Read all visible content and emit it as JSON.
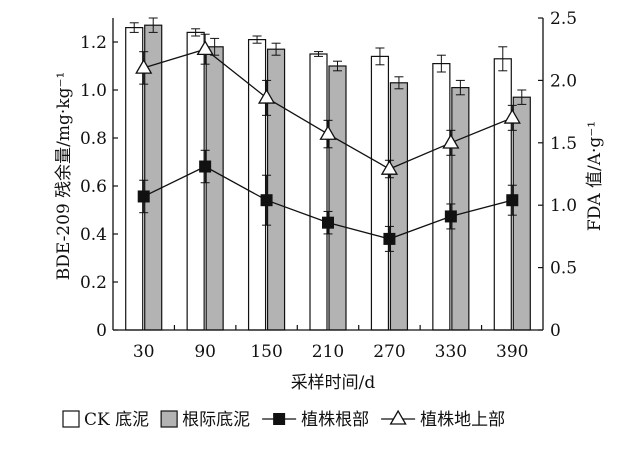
{
  "chart_data": {
    "type": "bar",
    "categories": [
      "30",
      "90",
      "150",
      "210",
      "270",
      "330",
      "390"
    ],
    "xlabel": "采样时间/d",
    "ylabel_left": "BDE-209 残余量/mg·kg⁻¹",
    "ylabel_right": "FDA 值/A·g⁻¹",
    "ylim_left": [
      0,
      1.3
    ],
    "ylim_right": [
      0,
      2.5
    ],
    "yticks_left": [
      "0",
      "0.2",
      "0.4",
      "0.6",
      "0.8",
      "1.0",
      "1.2"
    ],
    "yticks_right": [
      "0",
      "0.5",
      "1.0",
      "1.5",
      "2.0",
      "2.5"
    ],
    "series": [
      {
        "name": "CK 底泥",
        "kind": "bar",
        "axis": "left",
        "color": "#ffffff",
        "values": [
          1.26,
          1.24,
          1.21,
          1.15,
          1.14,
          1.11,
          1.13
        ],
        "errors": [
          0.02,
          0.015,
          0.015,
          0.01,
          0.035,
          0.035,
          0.05
        ]
      },
      {
        "name": "根际底泥",
        "kind": "bar",
        "axis": "left",
        "color": "#b3b3b3",
        "values": [
          1.27,
          1.18,
          1.17,
          1.1,
          1.03,
          1.01,
          0.97
        ],
        "errors": [
          0.03,
          0.035,
          0.025,
          0.02,
          0.025,
          0.03,
          0.03
        ]
      },
      {
        "name": "植株根部",
        "kind": "line",
        "marker": "square",
        "axis": "right",
        "values": [
          1.07,
          1.31,
          1.04,
          0.86,
          0.73,
          0.91,
          1.04
        ],
        "errors": [
          0.13,
          0.13,
          0.2,
          0.09,
          0.1,
          0.1,
          0.12
        ]
      },
      {
        "name": "植株地上部",
        "kind": "line",
        "marker": "triangle",
        "axis": "right",
        "values": [
          2.1,
          2.25,
          1.86,
          1.57,
          1.29,
          1.5,
          1.7
        ],
        "errors": [
          0.13,
          0.12,
          0.14,
          0.11,
          0.07,
          0.1,
          0.1
        ]
      }
    ],
    "legend_position": "bottom",
    "grid": false
  }
}
